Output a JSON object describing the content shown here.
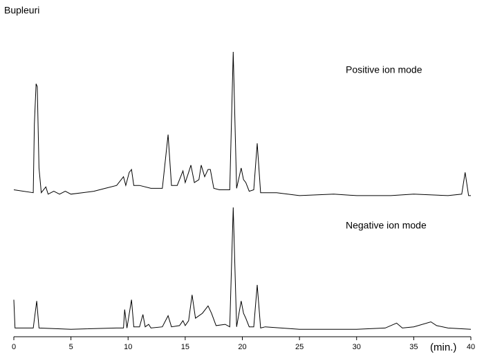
{
  "chart_data": {
    "type": "line",
    "title": "Bupleuri",
    "x_label": "(min.)",
    "xlim": [
      0,
      40
    ],
    "xticks": [
      0,
      5,
      10,
      15,
      20,
      25,
      30,
      35,
      40
    ],
    "ylim": [
      0,
      100
    ],
    "series": [
      {
        "name": "Positive ion mode",
        "color": "#000000",
        "x": [
          0,
          1.7,
          1.8,
          1.95,
          2.05,
          2.2,
          2.4,
          2.8,
          3.0,
          3.5,
          4.0,
          4.5,
          5,
          6,
          7,
          8,
          9,
          9.6,
          9.8,
          10.1,
          10.3,
          10.5,
          11,
          12,
          13,
          13.5,
          13.8,
          14.3,
          14.6,
          14.8,
          15.0,
          15.3,
          15.5,
          15.8,
          16.2,
          16.4,
          16.7,
          17.0,
          17.2,
          17.5,
          18,
          18.5,
          18.9,
          19.2,
          19.5,
          19.9,
          20.1,
          20.3,
          20.6,
          21.0,
          21.3,
          21.6,
          22,
          23,
          25,
          28,
          30,
          33,
          35,
          38,
          39.2,
          39.5,
          39.8,
          40
        ],
        "values": [
          5,
          3,
          50,
          78,
          76,
          20,
          3,
          7,
          2,
          4,
          2,
          4,
          2,
          3,
          4,
          6,
          8,
          14,
          8,
          17,
          19,
          8,
          8,
          6,
          6,
          43,
          8,
          8,
          14,
          18,
          10,
          17,
          22,
          10,
          12,
          22,
          14,
          19,
          19,
          6,
          5,
          5,
          5,
          100,
          6,
          20,
          12,
          10,
          4,
          5,
          37,
          3,
          3,
          3,
          1,
          2,
          1,
          1,
          2,
          1,
          2,
          17,
          1,
          1
        ]
      },
      {
        "name": "Negative ion mode",
        "color": "#000000",
        "x": [
          0,
          0.1,
          1.7,
          2.0,
          2.2,
          5,
          9,
          9.6,
          9.7,
          9.9,
          10.3,
          10.5,
          11,
          11.3,
          11.5,
          11.8,
          12,
          13,
          13.5,
          13.8,
          14.5,
          14.8,
          15.0,
          15.3,
          15.6,
          15.9,
          16.5,
          17.0,
          17.3,
          17.7,
          18.5,
          18.9,
          19.2,
          19.5,
          19.9,
          20.1,
          20.3,
          20.6,
          21.0,
          21.3,
          21.6,
          22,
          25,
          28,
          30,
          32.5,
          33.5,
          34,
          35,
          36.5,
          37,
          38,
          40
        ],
        "values": [
          25,
          2,
          2,
          24,
          2,
          1,
          2,
          2,
          17,
          2,
          25,
          3,
          3,
          13,
          3,
          5,
          2,
          3,
          12,
          3,
          4,
          8,
          4,
          8,
          29,
          10,
          14,
          20,
          14,
          4,
          5,
          3,
          100,
          3,
          24,
          14,
          10,
          3,
          3,
          37,
          2,
          3,
          1,
          1,
          1,
          2,
          6,
          2,
          3,
          7,
          4,
          2,
          1
        ]
      }
    ]
  }
}
